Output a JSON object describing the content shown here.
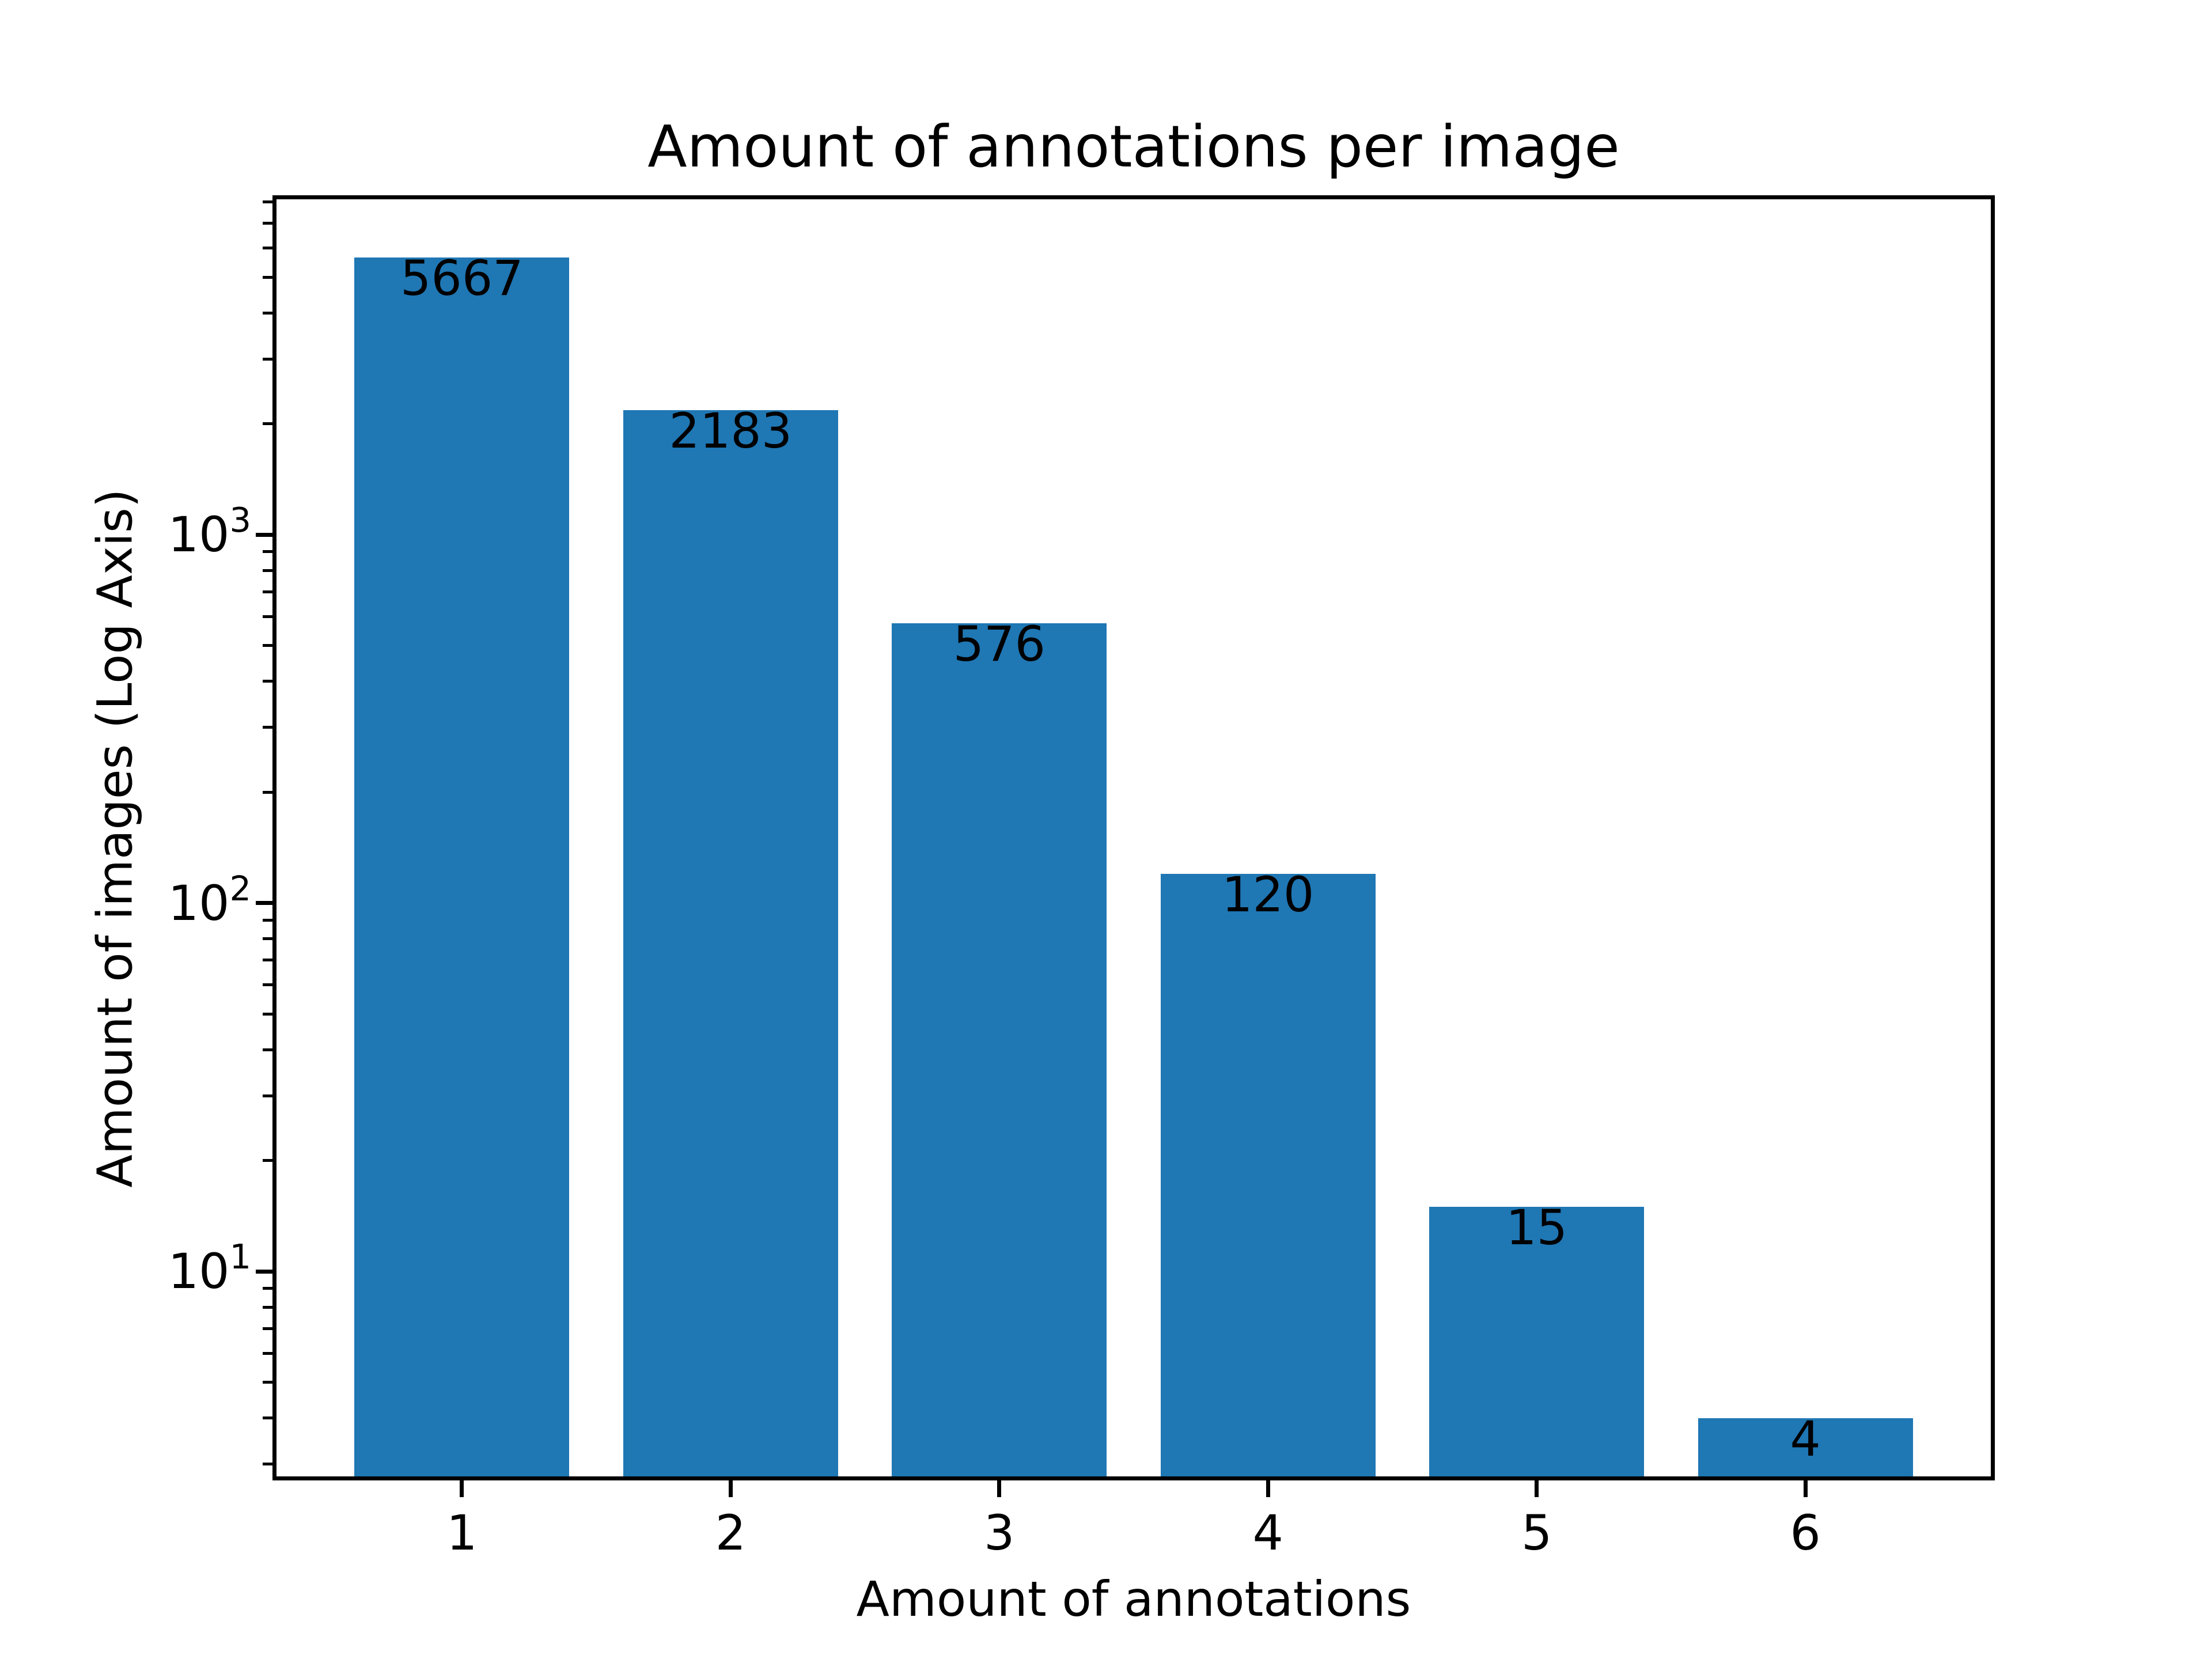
{
  "chart_data": {
    "type": "bar",
    "title": "Amount of annotations per image",
    "xlabel": "Amount of annotations",
    "ylabel": "Amount of images (Log Axis)",
    "categories": [
      "1",
      "2",
      "3",
      "4",
      "5",
      "6"
    ],
    "values": [
      5667,
      2183,
      576,
      120,
      15,
      4
    ],
    "bar_labels": [
      "5667",
      "2183",
      "576",
      "120",
      "15",
      "4"
    ],
    "bar_color": "#1f77b4",
    "axis_color": "#000000",
    "text_color": "#000000",
    "yscale": "log",
    "ylim": [
      2.78,
      8140
    ],
    "xlim": [
      0.31,
      6.69
    ],
    "bar_width_data_units": 0.8,
    "grid": false,
    "legend_position": "none",
    "y_major_ticks": [
      {
        "value": 10,
        "base": "10",
        "exponent": "1"
      },
      {
        "value": 100,
        "base": "10",
        "exponent": "2"
      },
      {
        "value": 1000,
        "base": "10",
        "exponent": "3"
      }
    ],
    "y_minor_tick_values": [
      3,
      4,
      5,
      6,
      7,
      8,
      9,
      20,
      30,
      40,
      50,
      60,
      70,
      80,
      90,
      200,
      300,
      400,
      500,
      600,
      700,
      800,
      900,
      2000,
      3000,
      4000,
      5000,
      6000,
      7000,
      8000
    ]
  }
}
